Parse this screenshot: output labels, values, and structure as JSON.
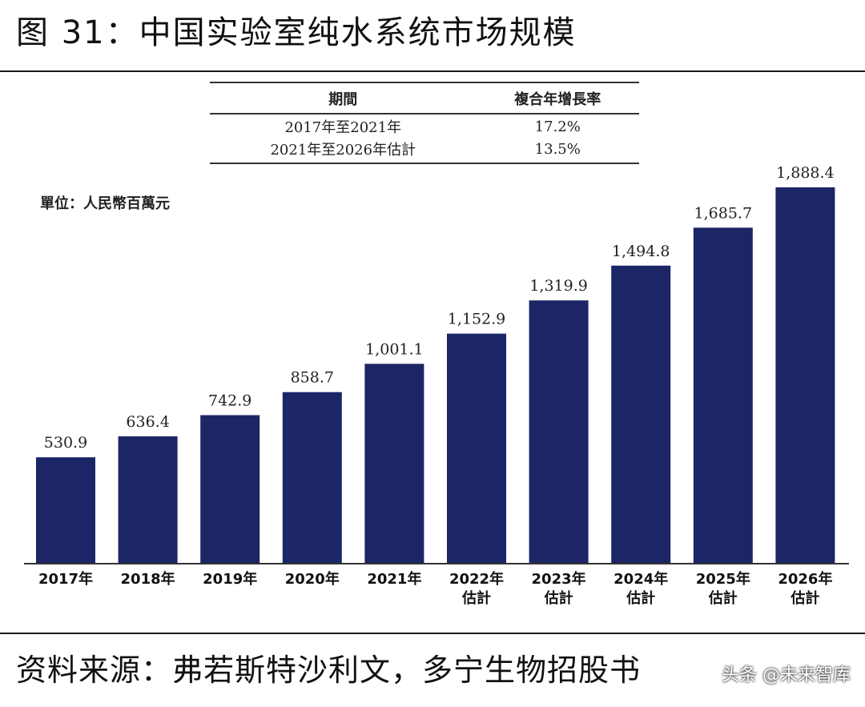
{
  "title": "图 31：中国实验室纯水系统市场规模",
  "cagr_table": {
    "headers": [
      "期間",
      "複合年增長率"
    ],
    "rows": [
      {
        "period": "2017年至2021年",
        "rate": "17.2%"
      },
      {
        "period": "2021年至2026年估計",
        "rate": "13.5%"
      }
    ]
  },
  "unit_label": "單位：人民幣百萬元",
  "source": "资料来源：弗若斯特沙利文，多宁生物招股书",
  "watermark": "头条 @未来智库",
  "colors": {
    "bar": "#1c2566",
    "text": "#111111"
  },
  "chart_data": {
    "type": "bar",
    "title": "",
    "xlabel": "",
    "ylabel": "",
    "categories": [
      [
        "2017年"
      ],
      [
        "2018年"
      ],
      [
        "2019年"
      ],
      [
        "2020年"
      ],
      [
        "2021年"
      ],
      [
        "2022年",
        "估計"
      ],
      [
        "2023年",
        "估計"
      ],
      [
        "2024年",
        "估計"
      ],
      [
        "2025年",
        "估計"
      ],
      [
        "2026年",
        "估計"
      ]
    ],
    "values": [
      530.9,
      636.4,
      742.9,
      858.7,
      1001.1,
      1152.9,
      1319.9,
      1494.8,
      1685.7,
      1888.4
    ],
    "value_labels": [
      "530.9",
      "636.4",
      "742.9",
      "858.7",
      "1,001.1",
      "1,152.9",
      "1,319.9",
      "1,494.8",
      "1,685.7",
      "1,888.4"
    ],
    "ylim": [
      0,
      1888.4
    ],
    "grid": false,
    "legend": "none"
  }
}
